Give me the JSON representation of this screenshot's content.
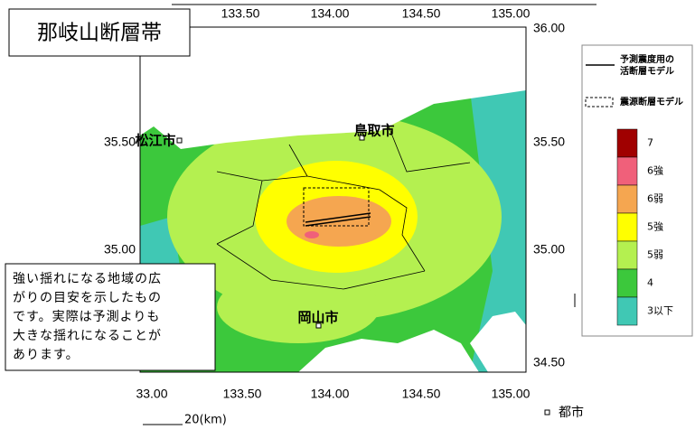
{
  "title": "那岐山断層帯",
  "axes": {
    "top": [
      "133.50",
      "134.00",
      "134.50",
      "135.00"
    ],
    "bottom": [
      "33.00",
      "133.50",
      "134.00",
      "134.50",
      "135.00"
    ],
    "left": [
      "35.50",
      "35.00"
    ],
    "right": [
      "36.00",
      "35.50",
      "35.00",
      "34.50"
    ]
  },
  "cities": [
    "松江市",
    "鳥取市",
    "岡山市"
  ],
  "note": [
    "強い揺れになる地域の広",
    "がりの目安を示したもの",
    "です。実際は予測よりも",
    "大きな揺れになることが",
    "あります。"
  ],
  "legend": {
    "fault_line": [
      "予測震度用の",
      "活断層モデル"
    ],
    "source_fault": "震源断層モデル",
    "levels": [
      {
        "label": "7",
        "color": "#a00000"
      },
      {
        "label": "6強",
        "color": "#f0607a"
      },
      {
        "label": "6弱",
        "color": "#f5a650"
      },
      {
        "label": "5強",
        "color": "#ffff00"
      },
      {
        "label": "5弱",
        "color": "#b4f050"
      },
      {
        "label": "4",
        "color": "#3cc83c"
      },
      {
        "label": "3以下",
        "color": "#40c8b4"
      }
    ]
  },
  "scale": "20(km)",
  "city_marker": "都市"
}
